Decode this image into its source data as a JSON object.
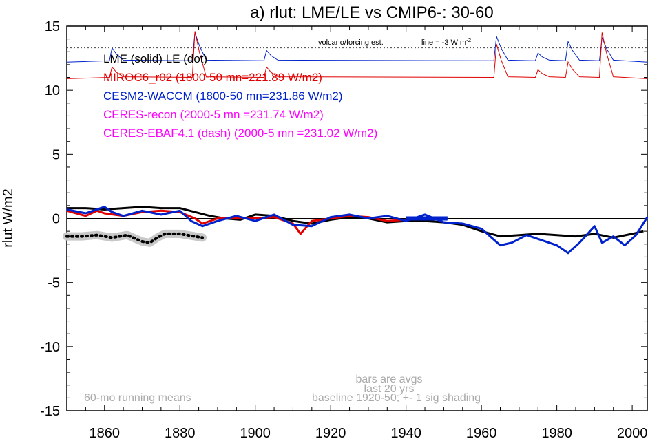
{
  "chart_data": {
    "type": "line",
    "title": "a) rlut: LME/LE vs CMIP6-: 30-60",
    "ylabel": "rlut W/m2",
    "xlabel": "",
    "xlim": [
      1850,
      2004
    ],
    "ylim": [
      -15,
      15
    ],
    "x_ticks": [
      1860,
      1880,
      1900,
      1920,
      1940,
      1960,
      1980,
      2000
    ],
    "y_ticks": [
      -15,
      -10,
      -5,
      0,
      5,
      10,
      15
    ],
    "zero_line": true,
    "volcano_line_value": 13.3,
    "legend": [
      {
        "text": "LME (solid)   LE (dot)",
        "color": "#000000"
      },
      {
        "text": "MIROC6_r02 (1800-50 mn=221.89 W/m2)",
        "color": "#e00000"
      },
      {
        "text": "CESM2-WACCM (1800-50 mn=231.86 W/m2)",
        "color": "#0022cc"
      },
      {
        "text": "CERES-recon (2000-5 mn =231.74 W/m2)",
        "color": "#ff00ff"
      },
      {
        "text": "CERES-EBAF4.1 (dash) (2000-5 mn =231.02 W/m2)",
        "color": "#ff00ff"
      }
    ],
    "annotations": {
      "volcano_label": "volcano/forcing est.",
      "line_label": "line = -3 W m",
      "line_label_sup": "-2",
      "bars_note": "bars are avgs",
      "last_note": "last 20 yrs",
      "running_note": "60-mo running means",
      "baseline_note": "baseline 1920-50; +- 1 sig shading"
    },
    "series": [
      {
        "name": "LME (solid)",
        "color": "#000000",
        "style": "solid",
        "x": [
          1850,
          1855,
          1860,
          1865,
          1870,
          1875,
          1880,
          1884,
          1888,
          1892,
          1896,
          1900,
          1905,
          1910,
          1915,
          1920,
          1925,
          1930,
          1935,
          1940,
          1945,
          1950,
          1955,
          1960,
          1965,
          1970,
          1975,
          1980,
          1985,
          1990,
          1995,
          2000,
          2003
        ],
        "y": [
          0.8,
          0.8,
          0.7,
          0.8,
          0.9,
          0.8,
          0.8,
          0.5,
          0.2,
          0.0,
          -0.1,
          0.3,
          0.2,
          -0.2,
          -0.4,
          -0.1,
          0.1,
          0.0,
          -0.3,
          -0.2,
          -0.2,
          -0.3,
          -0.5,
          -1.0,
          -1.4,
          -1.3,
          -1.2,
          -1.3,
          -1.4,
          -1.2,
          -1.5,
          -1.2,
          -1.0
        ]
      },
      {
        "name": "LE (dot)",
        "color": "#000000",
        "style": "dot",
        "x": [
          1850,
          1854,
          1858,
          1862,
          1866,
          1870,
          1872,
          1874,
          1876,
          1880,
          1884,
          1886
        ],
        "y": [
          -1.4,
          -1.4,
          -1.3,
          -1.5,
          -1.3,
          -1.8,
          -1.9,
          -1.5,
          -1.2,
          -1.2,
          -1.4,
          -1.5
        ]
      },
      {
        "name": "MIROC6_r02",
        "color": "#e00000",
        "style": "solid",
        "x": [
          1850,
          1855,
          1858,
          1860,
          1865,
          1870,
          1875,
          1880,
          1884,
          1886,
          1890,
          1895,
          1900,
          1905,
          1910,
          1912,
          1915,
          1920,
          1925,
          1930,
          1935,
          1940,
          1945,
          1950
        ],
        "y": [
          0.6,
          0.2,
          0.6,
          0.4,
          0.2,
          0.5,
          0.6,
          0.5,
          0.0,
          -0.4,
          0.0,
          0.0,
          0.0,
          0.1,
          -0.4,
          -1.2,
          -0.2,
          0.0,
          0.2,
          0.1,
          -0.2,
          -0.1,
          0.0,
          0.0
        ]
      },
      {
        "name": "CESM2-WACCM",
        "color": "#0022cc",
        "style": "solid",
        "x": [
          1850,
          1855,
          1860,
          1862,
          1865,
          1870,
          1875,
          1880,
          1883,
          1886,
          1890,
          1895,
          1900,
          1905,
          1910,
          1915,
          1920,
          1925,
          1930,
          1935,
          1940,
          1945,
          1950,
          1955,
          1960,
          1965,
          1968,
          1972,
          1975,
          1980,
          1983,
          1986,
          1990,
          1992,
          1995,
          1998,
          2001,
          2004
        ],
        "y": [
          0.7,
          0.4,
          0.9,
          0.5,
          0.2,
          0.6,
          0.3,
          0.6,
          -0.2,
          -0.6,
          -0.2,
          0.2,
          -0.2,
          0.3,
          -0.5,
          -0.6,
          0.1,
          0.3,
          0.0,
          0.2,
          -0.2,
          0.3,
          -0.3,
          -0.4,
          -0.8,
          -2.1,
          -1.9,
          -1.3,
          -1.6,
          -2.1,
          -2.7,
          -1.9,
          -0.6,
          -1.9,
          -1.4,
          -2.1,
          -1.3,
          0.1
        ]
      }
    ],
    "volcano_series": [
      {
        "name": "CESM2-WACCM",
        "color": "#0022cc",
        "baseline": 12.2,
        "peaks": [
          [
            1862,
            13.3
          ],
          [
            1884,
            14.5
          ],
          [
            1903,
            13.1
          ],
          [
            1964,
            14.2
          ],
          [
            1975,
            12.9
          ],
          [
            1983,
            13.8
          ],
          [
            1992,
            14.1
          ]
        ]
      },
      {
        "name": "MIROC6_r02",
        "color": "#e00000",
        "baseline": 10.9,
        "peaks": [
          [
            1862,
            11.8
          ],
          [
            1884,
            14.6
          ],
          [
            1903,
            11.8
          ],
          [
            1964,
            13.6
          ],
          [
            1975,
            11.6
          ],
          [
            1983,
            12.2
          ],
          [
            1992,
            14.5
          ]
        ]
      }
    ],
    "bars": [
      {
        "name": "CESM2-WACCM last 20 yrs",
        "color": "#0022cc",
        "x": [
          1940,
          1951
        ],
        "y": 0.0
      }
    ]
  }
}
